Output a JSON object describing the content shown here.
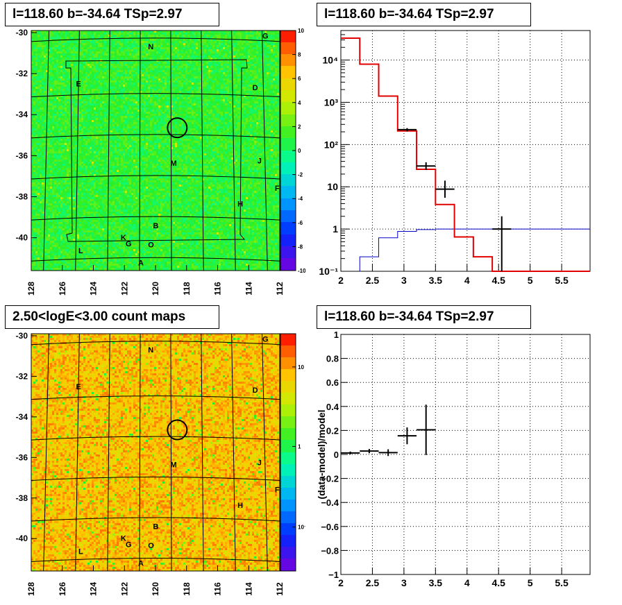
{
  "panels": {
    "top_left_title": "l=118.60 b=-34.64 TSp=2.97",
    "top_right_title": "l=118.60 b=-34.64 TSp=2.97",
    "bottom_left_title": "2.50<logE<3.00 count maps",
    "bottom_right_title": "l=118.60 b=-34.64 TSp=2.97"
  },
  "colors": {
    "data": "#000000",
    "model_total": "#e00000",
    "model_source": "#0000c8",
    "grid": "#000000"
  },
  "chart_data": [
    {
      "type": "heatmap",
      "name": "TS residual map",
      "x_ticks": [
        "128",
        "126",
        "124",
        "122",
        "120",
        "118",
        "116",
        "114",
        "112"
      ],
      "y_ticks": [
        "-30",
        "-32",
        "-34",
        "-36",
        "-38",
        "-40"
      ],
      "xlim": [
        128,
        112
      ],
      "ylim": [
        -41.6,
        -29.9
      ],
      "colorbar_ticks": [
        "10",
        "8",
        "6",
        "4",
        "2",
        "0",
        "-2",
        "-4",
        "-6",
        "-8",
        "-10"
      ],
      "colorbar_range": [
        -10,
        10
      ],
      "source_labels": [
        "N",
        "G",
        "E",
        "D",
        "M",
        "J",
        "F",
        "H",
        "B",
        "K",
        "G",
        "O",
        "L",
        "A"
      ],
      "marked_source": {
        "l": 118.6,
        "b": -34.64
      }
    },
    {
      "type": "line",
      "name": "spectrum",
      "xlim": [
        2,
        5.95
      ],
      "ylim": [
        0.1,
        50000
      ],
      "log_y": true,
      "x_ticks": [
        "2",
        "2.5",
        "3",
        "3.5",
        "4",
        "4.5",
        "5",
        "5.5"
      ],
      "y_ticks": [
        "10⁻¹",
        "1",
        "10",
        "10²",
        "10³",
        "10⁴"
      ],
      "model_total_steps": {
        "edges": [
          2.0,
          2.3,
          2.6,
          2.9,
          3.2,
          3.5,
          3.8,
          4.1,
          4.4,
          4.7,
          5.0,
          5.3,
          5.6,
          5.95
        ],
        "values": [
          33000,
          8000,
          1400,
          210,
          26,
          3.8,
          0.65,
          0.22,
          0.08,
          0.1,
          0.1,
          0.1,
          0.1
        ]
      },
      "model_source_steps": {
        "edges": [
          2.3,
          2.6,
          2.9,
          3.2,
          3.5,
          3.8,
          4.1,
          4.4,
          4.7,
          5.0,
          5.3,
          5.6,
          5.95
        ],
        "values": [
          0.22,
          0.62,
          0.88,
          0.97,
          1.0,
          1.0,
          1.0,
          1.0,
          1.0,
          1.0,
          1.0,
          1.0
        ]
      },
      "data_points": [
        {
          "x": 3.05,
          "xerr": 0.15,
          "y": 225,
          "ylo": 205,
          "yhi": 245
        },
        {
          "x": 3.35,
          "xerr": 0.15,
          "y": 31,
          "ylo": 25,
          "yhi": 38
        },
        {
          "x": 3.65,
          "xerr": 0.15,
          "y": 8.8,
          "ylo": 5.5,
          "yhi": 14
        },
        {
          "x": 4.55,
          "xerr": 0.15,
          "y": 1.0,
          "ylo": 0.1,
          "yhi": 2.0
        }
      ]
    },
    {
      "type": "heatmap",
      "name": "count map",
      "x_ticks": [
        "128",
        "126",
        "124",
        "122",
        "120",
        "118",
        "116",
        "114",
        "112"
      ],
      "y_ticks": [
        "-30",
        "-32",
        "-34",
        "-36",
        "-38",
        "-40"
      ],
      "xlim": [
        128,
        112
      ],
      "ylim": [
        -41.6,
        -29.9
      ],
      "colorbar_ticks": [
        "10",
        "1",
        "10⁻¹"
      ],
      "colorbar_log": true,
      "source_labels": [
        "N",
        "G",
        "E",
        "D",
        "M",
        "J",
        "F",
        "H",
        "B",
        "K",
        "G",
        "O",
        "L",
        "A"
      ],
      "marked_source": {
        "l": 118.6,
        "b": -34.64
      }
    },
    {
      "type": "scatter",
      "name": "residuals",
      "ylabel": "(data-model)/model",
      "xlim": [
        2,
        5.95
      ],
      "ylim": [
        -1,
        1
      ],
      "x_ticks": [
        "2",
        "2.5",
        "3",
        "3.5",
        "4",
        "4.5",
        "5",
        "5.5"
      ],
      "y_ticks": [
        "1",
        "0.8",
        "0.6",
        "0.4",
        "0.2",
        "0",
        "−0.2",
        "−0.4",
        "−0.6",
        "−0.8",
        "−1"
      ],
      "points": [
        {
          "x": 2.15,
          "xerr": 0.15,
          "y": 0.012,
          "yerr": 0.012
        },
        {
          "x": 2.45,
          "xerr": 0.15,
          "y": 0.028,
          "yerr": 0.018
        },
        {
          "x": 2.75,
          "xerr": 0.15,
          "y": 0.015,
          "yerr": 0.028
        },
        {
          "x": 3.05,
          "xerr": 0.15,
          "y": 0.155,
          "yerr": 0.07
        },
        {
          "x": 3.35,
          "xerr": 0.15,
          "y": 0.205,
          "yerr": 0.21
        }
      ]
    }
  ]
}
